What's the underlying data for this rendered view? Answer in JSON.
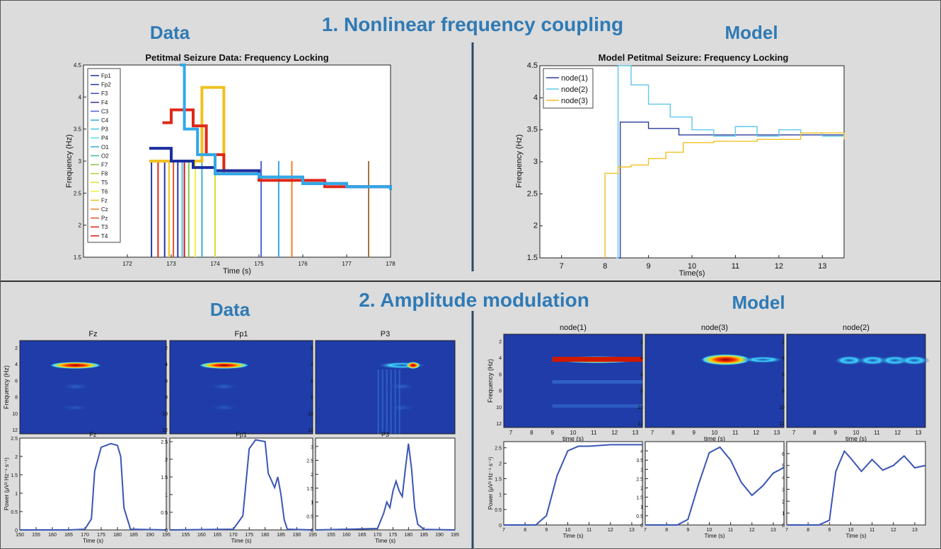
{
  "headings": {
    "data_top": "Data",
    "section1": "1. Nonlinear frequency coupling",
    "model_top": "Model",
    "data_bottom": "Data",
    "section2": "2. Amplitude modulation",
    "model_bottom": "Model"
  },
  "colors": {
    "section_heading": "#2f7ab5",
    "node1": "#2a3a9a",
    "node2": "#5ec8ec",
    "node3": "#f0c020",
    "power_trace": "#3a55b5",
    "spectrogram_bg": "#1f3ca8"
  },
  "chart_data": [
    {
      "type": "line",
      "title": "Petitmal Seizure Data: Frequency Locking",
      "xlabel": "Time (s)",
      "ylabel": "Frequency (Hz)",
      "xlim": [
        171,
        178
      ],
      "ylim": [
        1.5,
        4.5
      ],
      "x_ticks": [
        "172",
        "173",
        "174",
        "175",
        "176",
        "177",
        "178"
      ],
      "y_ticks": [
        "1.5",
        "2",
        "2.5",
        "3",
        "3.5",
        "4",
        "4.5"
      ],
      "legend": [
        "Fp1",
        "Fp2",
        "F3",
        "F4",
        "C3",
        "C4",
        "P3",
        "P4",
        "O1",
        "O2",
        "F7",
        "F8",
        "T5",
        "T6",
        "Fz",
        "Cz",
        "Pz",
        "T3",
        "T4"
      ],
      "legend_colors": [
        "#1a2f9f",
        "#2236b5",
        "#3a4cc8",
        "#3030a0",
        "#5060d0",
        "#30a8e8",
        "#40c8f0",
        "#48e0f0",
        "#3ab0d0",
        "#40c090",
        "#80c840",
        "#a8d830",
        "#d8e030",
        "#f0f040",
        "#f0c020",
        "#f08020",
        "#e85020",
        "#e02818",
        "#e01010"
      ],
      "series": [
        {
          "name": "Fz",
          "color": "#f0c020",
          "x": [
            172.5,
            173.7,
            174.1,
            174.2
          ],
          "y": [
            3.0,
            4.15,
            4.15,
            2.8
          ]
        },
        {
          "name": "T3",
          "color": "#e02818",
          "x": [
            172.8,
            173.0,
            173.5,
            173.8,
            174.2,
            175.0,
            176.5,
            178.0
          ],
          "y": [
            3.6,
            3.8,
            3.55,
            3.1,
            2.85,
            2.7,
            2.6,
            2.55
          ]
        },
        {
          "name": "Fp1",
          "color": "#1a2f9f",
          "x": [
            172.5,
            173.0,
            173.5,
            174.0,
            175.0,
            176.0,
            177.0,
            178.0
          ],
          "y": [
            3.2,
            3.0,
            2.9,
            2.85,
            2.75,
            2.65,
            2.6,
            2.55
          ]
        },
        {
          "name": "C4",
          "color": "#30a8e8",
          "x": [
            173.2,
            173.3,
            173.6,
            174.0,
            175.0,
            176.0,
            177.0,
            178.0
          ],
          "y": [
            4.5,
            3.5,
            3.1,
            2.8,
            2.75,
            2.65,
            2.6,
            2.55
          ]
        }
      ]
    },
    {
      "type": "line",
      "title": "Model Petitmal Seizure: Frequency Locking",
      "xlabel": "Time(s)",
      "ylabel": "Frequency (Hz)",
      "xlim": [
        6.5,
        13.5
      ],
      "ylim": [
        1.5,
        4.5
      ],
      "x_ticks": [
        "7",
        "8",
        "9",
        "10",
        "11",
        "12",
        "13"
      ],
      "y_ticks": [
        "1.5",
        "2",
        "2.5",
        "3",
        "3.5",
        "4",
        "4.5"
      ],
      "series": [
        {
          "name": "node(1)",
          "color": "#2a3a9a",
          "x": [
            8.3,
            8.35,
            8.35,
            9.0,
            9.0,
            9.7,
            9.7,
            13.5
          ],
          "y": [
            1.5,
            1.5,
            3.62,
            3.62,
            3.52,
            3.52,
            3.42,
            3.42
          ]
        },
        {
          "name": "node(2)",
          "color": "#5ec8ec",
          "x": [
            8.25,
            8.3,
            8.6,
            9.0,
            9.5,
            10.0,
            10.5,
            11.0,
            11.5,
            12.0,
            12.5,
            13.0,
            13.5
          ],
          "y": [
            1.5,
            4.5,
            4.2,
            3.9,
            3.7,
            3.5,
            3.4,
            3.55,
            3.4,
            3.5,
            3.45,
            3.4,
            3.42
          ]
        },
        {
          "name": "node(3)",
          "color": "#f0c020",
          "x": [
            8.0,
            8.0,
            8.3,
            8.6,
            9.0,
            9.4,
            9.8,
            10.5,
            11.5,
            12.5,
            13.5
          ],
          "y": [
            1.5,
            2.82,
            2.92,
            2.95,
            3.05,
            3.15,
            3.3,
            3.32,
            3.35,
            3.45,
            3.35
          ]
        }
      ]
    },
    {
      "type": "line",
      "title": "Fz",
      "xlabel": "Time (s)",
      "ylabel": "Power (μV² Hz⁻¹ s⁻¹)",
      "x_ticks": [
        "150",
        "155",
        "160",
        "165",
        "170",
        "175",
        "180",
        "185",
        "190",
        "195"
      ],
      "y_ticks": [
        "0",
        "0.5",
        "1",
        "1.5",
        "2",
        "2.5"
      ],
      "xlim": [
        150,
        195
      ],
      "ylim": [
        0,
        2.5
      ],
      "x": [
        150,
        165,
        170,
        172,
        173,
        175,
        178,
        180,
        181,
        182,
        184,
        195
      ],
      "y": [
        0.0,
        0.0,
        0.02,
        0.3,
        1.6,
        2.25,
        2.35,
        2.3,
        2.0,
        0.6,
        0.02,
        0.0
      ]
    },
    {
      "type": "line",
      "title": "Fp1",
      "xlabel": "Time (s)",
      "ylabel": "",
      "x_ticks": [
        "155",
        "160",
        "165",
        "170",
        "175",
        "180",
        "185",
        "190",
        "195"
      ],
      "y_ticks": [
        "0",
        "0.5",
        "1",
        "1.5",
        "2",
        "2.5"
      ],
      "xlim": [
        150,
        195
      ],
      "ylim": [
        0,
        2.6
      ],
      "x": [
        150,
        170,
        173,
        175,
        177,
        180,
        181,
        183,
        184,
        185,
        186,
        187,
        195
      ],
      "y": [
        0.0,
        0.02,
        0.4,
        2.3,
        2.55,
        2.5,
        1.6,
        1.2,
        1.5,
        1.0,
        0.3,
        0.02,
        0.0
      ]
    },
    {
      "type": "line",
      "title": "P3",
      "xlabel": "Time (s)",
      "ylabel": "",
      "x_ticks": [
        "155",
        "160",
        "165",
        "170",
        "175",
        "180",
        "185",
        "190",
        "195"
      ],
      "y_ticks": [
        "0",
        "0.5",
        "1",
        "1.5",
        "2",
        "2.5",
        "3"
      ],
      "xlim": [
        150,
        195
      ],
      "ylim": [
        0,
        3.3
      ],
      "x": [
        150,
        170,
        172,
        173,
        174,
        175,
        176,
        177,
        178,
        179,
        180,
        181,
        182,
        183,
        185,
        195
      ],
      "y": [
        0.0,
        0.05,
        0.6,
        1.0,
        0.8,
        1.4,
        1.75,
        1.4,
        1.2,
        2.2,
        3.1,
        2.2,
        0.8,
        0.2,
        0.02,
        0.0
      ]
    },
    {
      "type": "line",
      "title": "node(1)",
      "xlabel": "Time (s)",
      "ylabel": "Power (μV² Hz⁻¹ s⁻¹)",
      "x_ticks": [
        "7",
        "8",
        "9",
        "10",
        "11",
        "12",
        "13"
      ],
      "y_ticks": [
        "0",
        "0.5",
        "1",
        "1.5",
        "2",
        "2.5"
      ],
      "xlim": [
        7,
        13.5
      ],
      "ylim": [
        0,
        2.7
      ],
      "x": [
        7,
        8.5,
        9.0,
        9.5,
        10.0,
        10.5,
        11.0,
        12.0,
        13.5
      ],
      "y": [
        0.0,
        0.0,
        0.3,
        1.6,
        2.4,
        2.55,
        2.55,
        2.6,
        2.6
      ]
    },
    {
      "type": "line",
      "title": "node(3)",
      "xlabel": "Time (s)",
      "ylabel": "",
      "x_ticks": [
        "7",
        "8",
        "9",
        "10",
        "11",
        "12",
        "13"
      ],
      "y_ticks": [
        "0",
        "0.5",
        "1",
        "1.5",
        "2",
        "2.5",
        "3",
        "3.5",
        "4"
      ],
      "xlim": [
        7,
        13.5
      ],
      "ylim": [
        0,
        4.5
      ],
      "x": [
        7,
        8.5,
        9.0,
        9.5,
        10.0,
        10.5,
        11.0,
        11.5,
        12.0,
        12.5,
        13.0,
        13.5
      ],
      "y": [
        0.0,
        0.0,
        0.3,
        2.2,
        3.9,
        4.2,
        3.5,
        2.3,
        1.6,
        2.1,
        2.8,
        3.1
      ]
    },
    {
      "type": "line",
      "title": "node(2)",
      "xlabel": "Time (s)",
      "ylabel": "",
      "x_ticks": [
        "7",
        "8",
        "9",
        "10",
        "11",
        "12",
        "13"
      ],
      "y_ticks": [
        "0",
        "1",
        "2",
        "3",
        "4",
        "5",
        "6"
      ],
      "xlim": [
        7,
        13.5
      ],
      "ylim": [
        0,
        7
      ],
      "x": [
        7,
        8.5,
        9.0,
        9.3,
        9.7,
        10.0,
        10.5,
        11.0,
        11.5,
        12.0,
        12.5,
        13.0,
        13.5
      ],
      "y": [
        0.0,
        0.0,
        0.4,
        4.5,
        6.2,
        5.6,
        4.5,
        5.5,
        4.6,
        5.0,
        5.8,
        4.8,
        5.0
      ]
    }
  ],
  "spectrograms": [
    {
      "title": "Fz",
      "ylabel": "Frequency (Hz)",
      "y_ticks": [
        "2",
        "4",
        "6",
        "8",
        "10",
        "12"
      ],
      "x_ticks": [],
      "band_freq": 4,
      "intensity": "hot"
    },
    {
      "title": "Fp1",
      "ylabel": "",
      "y_ticks": [
        "2",
        "4",
        "6",
        "8",
        "10",
        "12"
      ],
      "x_ticks": [],
      "band_freq": 4,
      "intensity": "hot"
    },
    {
      "title": "P3",
      "ylabel": "",
      "y_ticks": [
        "2",
        "4",
        "6",
        "8",
        "10",
        "12"
      ],
      "x_ticks": [],
      "band_freq": 4,
      "intensity": "mixed"
    },
    {
      "title": "node(1)",
      "ylabel": "Frequency (Hz)",
      "y_ticks": [
        "2",
        "4",
        "6",
        "8",
        "10",
        "12"
      ],
      "x_ticks": [
        "7",
        "8",
        "9",
        "10",
        "11",
        "12",
        "13"
      ],
      "xlabel": "time (s)",
      "band_freq": 4,
      "intensity": "hot"
    },
    {
      "title": "node(3)",
      "ylabel": "",
      "y_ticks": [
        "2",
        "4",
        "6",
        "8",
        "10",
        "12"
      ],
      "x_ticks": [
        "7",
        "8",
        "9",
        "10",
        "11",
        "12",
        "13"
      ],
      "xlabel": "time (s)",
      "band_freq": 4,
      "intensity": "hot-spot"
    },
    {
      "title": "node(2)",
      "ylabel": "",
      "y_ticks": [
        "2",
        "4",
        "6",
        "8",
        "10",
        "12"
      ],
      "x_ticks": [
        "7",
        "8",
        "9",
        "10",
        "11",
        "12",
        "13"
      ],
      "xlabel": "time (s)",
      "band_freq": 4,
      "intensity": "cool"
    }
  ]
}
